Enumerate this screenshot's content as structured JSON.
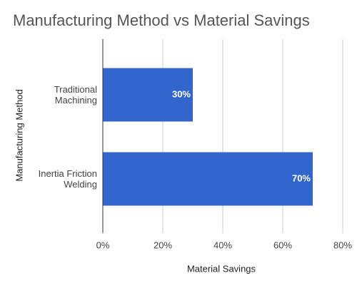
{
  "chart_data": {
    "type": "bar",
    "orientation": "horizontal",
    "title": "Manufacturing Method vs Material Savings",
    "x_label": "Material Savings",
    "y_label": "Manufacturing Method",
    "categories": [
      "Traditional Machining",
      "Inertia Friction Welding"
    ],
    "values": [
      30,
      70
    ],
    "value_labels": [
      "30%",
      "70%"
    ],
    "color": "#3366cc",
    "xlim": [
      0,
      80
    ],
    "xticks": [
      {
        "value": 0,
        "label": "0%"
      },
      {
        "value": 20,
        "label": "20%"
      },
      {
        "value": 40,
        "label": "40%"
      },
      {
        "value": 60,
        "label": "60%"
      },
      {
        "value": 80,
        "label": "80%"
      }
    ],
    "grid": true
  }
}
